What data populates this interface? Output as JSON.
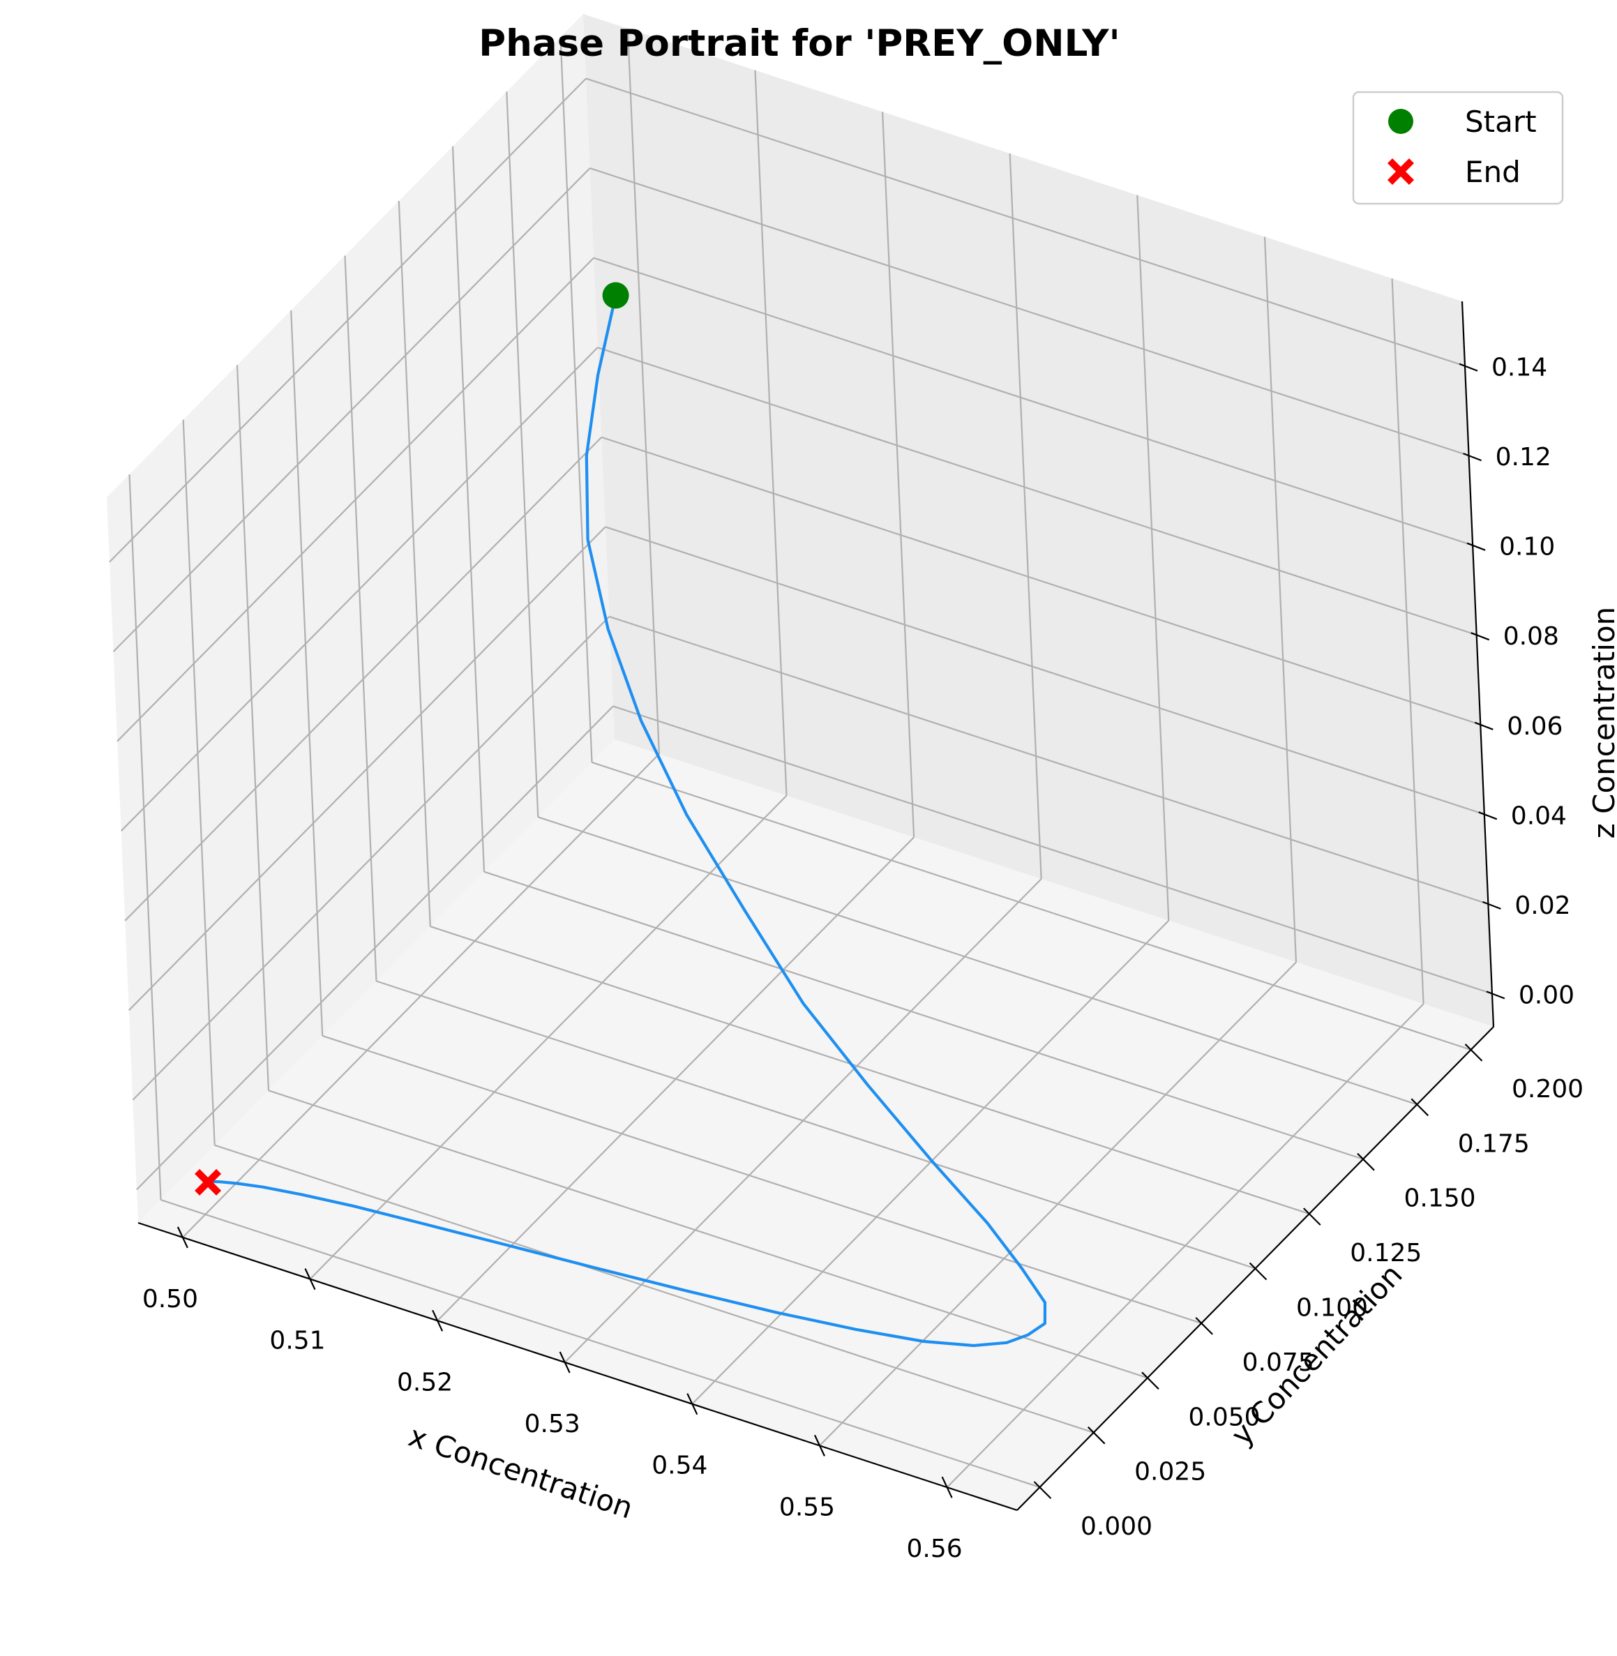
{
  "chart_data": {
    "type": "line3d",
    "title": "Phase Portrait for 'PREY_ONLY'",
    "xlabel": "x Concentration",
    "ylabel": "y Concentration",
    "zlabel": "z Concentration",
    "xlim": [
      0.4965,
      0.5655
    ],
    "ylim": [
      -0.0105,
      0.2105
    ],
    "zlim": [
      -0.0074,
      0.1544
    ],
    "x_ticks": [
      "0.50",
      "0.51",
      "0.52",
      "0.53",
      "0.54",
      "0.55",
      "0.56"
    ],
    "y_ticks": [
      "0.000",
      "0.025",
      "0.050",
      "0.075",
      "0.100",
      "0.125",
      "0.150",
      "0.175",
      "0.200"
    ],
    "z_ticks": [
      "0.00",
      "0.02",
      "0.04",
      "0.06",
      "0.08",
      "0.10",
      "0.12",
      "0.14"
    ],
    "grid": true,
    "line_color": "#1e8ff0",
    "trajectory": {
      "x": [
        0.5,
        0.501,
        0.5025,
        0.505,
        0.509,
        0.514,
        0.52,
        0.527,
        0.534,
        0.541,
        0.548,
        0.554,
        0.558,
        0.561,
        0.562,
        0.5615,
        0.5605,
        0.5585,
        0.555,
        0.55,
        0.544,
        0.537,
        0.53,
        0.523,
        0.517,
        0.5115,
        0.5075,
        0.5045,
        0.5025,
        0.5012,
        0.5005,
        0.5003
      ],
      "y": [
        0.2,
        0.185,
        0.17,
        0.155,
        0.14,
        0.125,
        0.11,
        0.095,
        0.08,
        0.068,
        0.056,
        0.046,
        0.038,
        0.031,
        0.025,
        0.02,
        0.016,
        0.0125,
        0.0098,
        0.0078,
        0.0062,
        0.005,
        0.004,
        0.0032,
        0.0025,
        0.0019,
        0.0014,
        0.001,
        0.0007,
        0.0004,
        0.0002,
        0.0001
      ],
      "z": [
        0.1,
        0.0905,
        0.0812,
        0.0721,
        0.0632,
        0.0547,
        0.0466,
        0.039,
        0.0322,
        0.0264,
        0.0218,
        0.0184,
        0.016,
        0.0145,
        0.0137,
        0.0131,
        0.0124,
        0.0116,
        0.0106,
        0.0096,
        0.0086,
        0.0076,
        0.0067,
        0.0058,
        0.005,
        0.0042,
        0.0033,
        0.0024,
        0.0015,
        0.0008,
        0.0003,
        0.0
      ]
    },
    "start": {
      "x": 0.5,
      "y": 0.2,
      "z": 0.1,
      "color": "#008000"
    },
    "end": {
      "x": 0.5003,
      "y": 0.0001,
      "z": 0.0,
      "color": "#ff0000"
    },
    "legend": [
      {
        "label": "Start",
        "marker": "circle",
        "color": "#008000"
      },
      {
        "label": "End",
        "marker": "x-filled",
        "color": "#ff0000"
      }
    ],
    "legend_position": "top-right"
  }
}
